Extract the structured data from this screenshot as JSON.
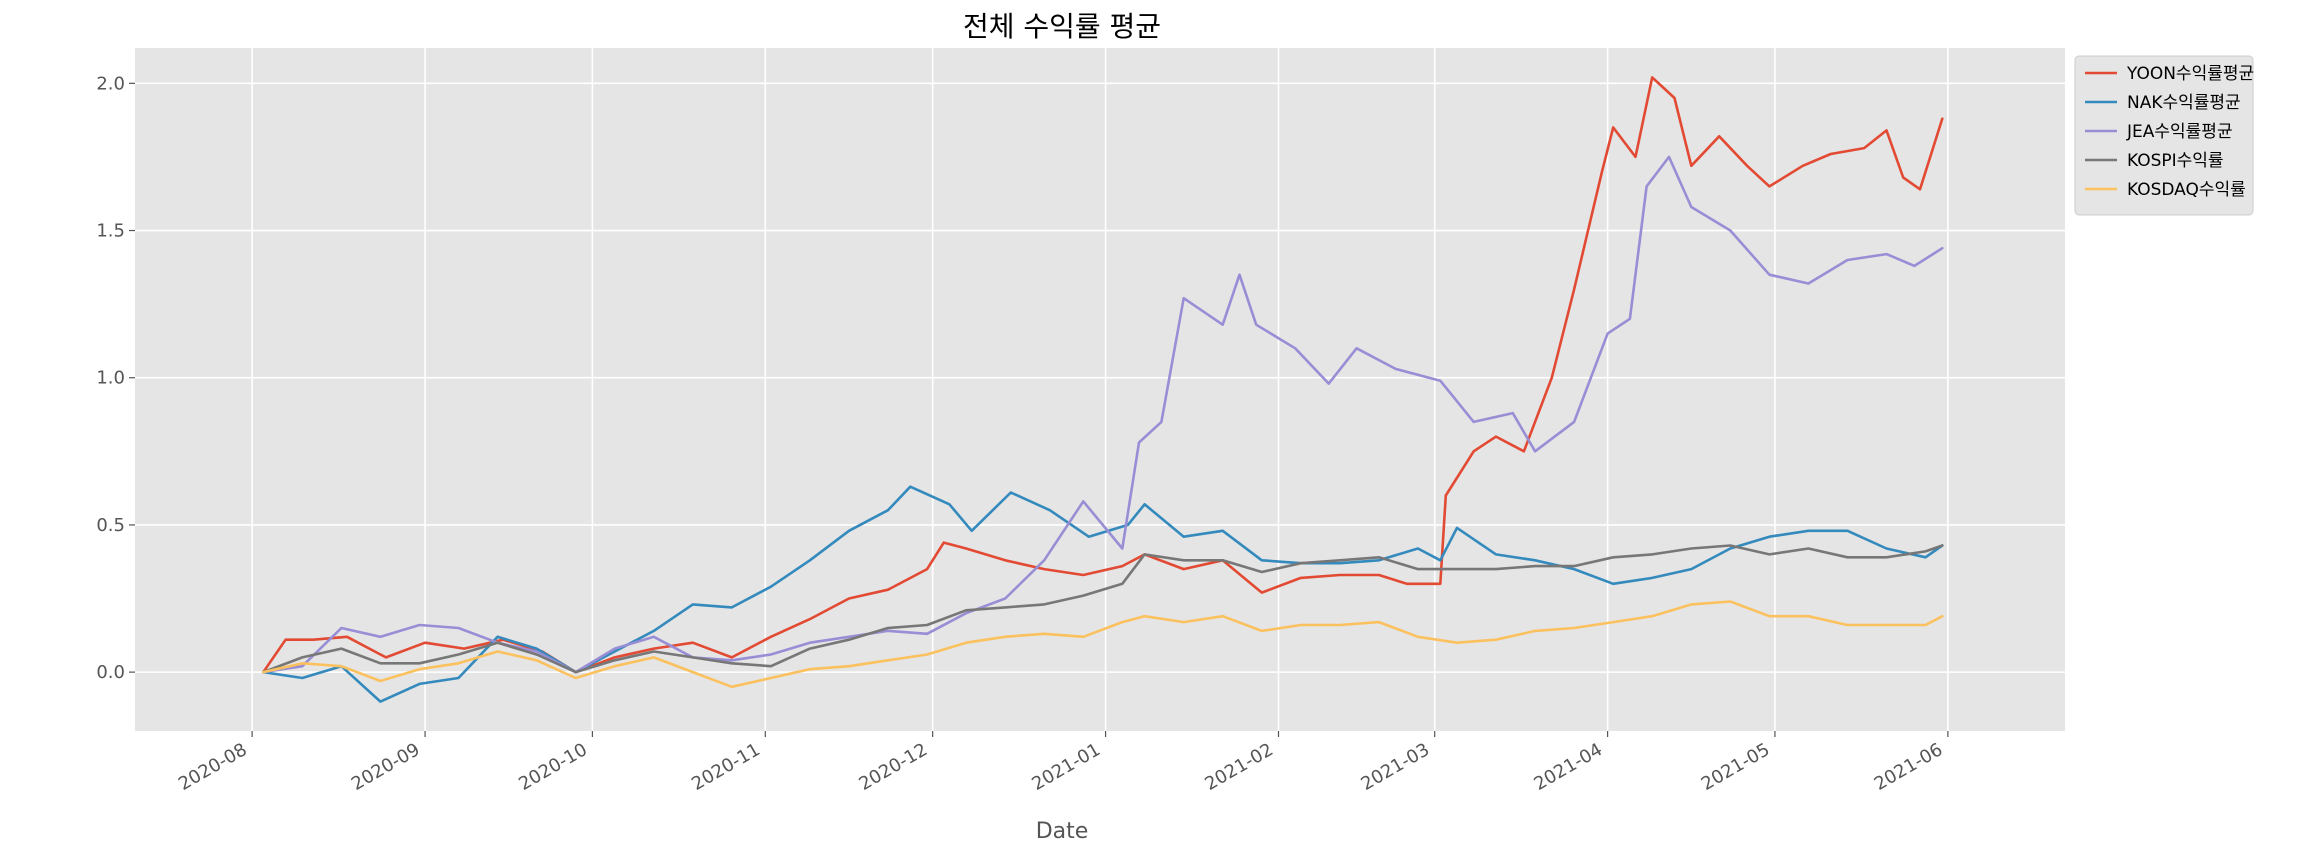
{
  "chart_data": {
    "type": "line",
    "title": "전체 수익률 평균",
    "xlabel": "Date",
    "ylabel": "",
    "xlim": [
      "2020-07-11",
      "2021-06-22"
    ],
    "ylim": [
      -0.2,
      2.12
    ],
    "x_ticks": [
      "2020-08",
      "2020-09",
      "2020-10",
      "2020-11",
      "2020-12",
      "2021-01",
      "2021-02",
      "2021-03",
      "2021-04",
      "2021-05",
      "2021-06"
    ],
    "y_ticks": [
      "0.0",
      "0.5",
      "1.0",
      "1.5",
      "2.0"
    ],
    "grid": true,
    "legend_position": "top-right",
    "colors": {
      "background": "#e5e5e5",
      "grid": "#ffffff",
      "yoon": "#e24a33",
      "nak": "#348abd",
      "jea": "#988ed5",
      "kospi": "#777777",
      "kosdaq": "#fbc15e"
    },
    "series": [
      {
        "name": "YOON수익률평균",
        "color": "#e24a33",
        "points": [
          [
            "2020-08-03",
            0.0
          ],
          [
            "2020-08-07",
            0.11
          ],
          [
            "2020-08-12",
            0.11
          ],
          [
            "2020-08-18",
            0.12
          ],
          [
            "2020-08-25",
            0.05
          ],
          [
            "2020-09-01",
            0.1
          ],
          [
            "2020-09-08",
            0.08
          ],
          [
            "2020-09-15",
            0.11
          ],
          [
            "2020-09-22",
            0.07
          ],
          [
            "2020-09-28",
            0.0
          ],
          [
            "2020-10-05",
            0.05
          ],
          [
            "2020-10-12",
            0.08
          ],
          [
            "2020-10-19",
            0.1
          ],
          [
            "2020-10-26",
            0.05
          ],
          [
            "2020-11-02",
            0.12
          ],
          [
            "2020-11-09",
            0.18
          ],
          [
            "2020-11-16",
            0.25
          ],
          [
            "2020-11-23",
            0.28
          ],
          [
            "2020-11-30",
            0.35
          ],
          [
            "2020-12-03",
            0.44
          ],
          [
            "2020-12-07",
            0.42
          ],
          [
            "2020-12-14",
            0.38
          ],
          [
            "2020-12-21",
            0.35
          ],
          [
            "2020-12-28",
            0.33
          ],
          [
            "2021-01-04",
            0.36
          ],
          [
            "2021-01-08",
            0.4
          ],
          [
            "2021-01-15",
            0.35
          ],
          [
            "2021-01-22",
            0.38
          ],
          [
            "2021-01-29",
            0.27
          ],
          [
            "2021-02-05",
            0.32
          ],
          [
            "2021-02-12",
            0.33
          ],
          [
            "2021-02-19",
            0.33
          ],
          [
            "2021-02-24",
            0.3
          ],
          [
            "2021-03-02",
            0.3
          ],
          [
            "2021-03-03",
            0.6
          ],
          [
            "2021-03-08",
            0.75
          ],
          [
            "2021-03-12",
            0.8
          ],
          [
            "2021-03-17",
            0.75
          ],
          [
            "2021-03-22",
            1.0
          ],
          [
            "2021-03-26",
            1.3
          ],
          [
            "2021-03-31",
            1.7
          ],
          [
            "2021-04-02",
            1.85
          ],
          [
            "2021-04-06",
            1.75
          ],
          [
            "2021-04-09",
            2.02
          ],
          [
            "2021-04-13",
            1.95
          ],
          [
            "2021-04-16",
            1.72
          ],
          [
            "2021-04-21",
            1.82
          ],
          [
            "2021-04-26",
            1.72
          ],
          [
            "2021-04-30",
            1.65
          ],
          [
            "2021-05-06",
            1.72
          ],
          [
            "2021-05-11",
            1.76
          ],
          [
            "2021-05-17",
            1.78
          ],
          [
            "2021-05-21",
            1.84
          ],
          [
            "2021-05-24",
            1.68
          ],
          [
            "2021-05-27",
            1.64
          ],
          [
            "2021-05-31",
            1.88
          ]
        ]
      },
      {
        "name": "NAK수익률평균",
        "color": "#348abd",
        "points": [
          [
            "2020-08-03",
            0.0
          ],
          [
            "2020-08-10",
            -0.02
          ],
          [
            "2020-08-17",
            0.02
          ],
          [
            "2020-08-24",
            -0.1
          ],
          [
            "2020-08-31",
            -0.04
          ],
          [
            "2020-09-07",
            -0.02
          ],
          [
            "2020-09-14",
            0.12
          ],
          [
            "2020-09-21",
            0.08
          ],
          [
            "2020-09-28",
            0.0
          ],
          [
            "2020-10-05",
            0.07
          ],
          [
            "2020-10-12",
            0.14
          ],
          [
            "2020-10-19",
            0.23
          ],
          [
            "2020-10-26",
            0.22
          ],
          [
            "2020-11-02",
            0.29
          ],
          [
            "2020-11-09",
            0.38
          ],
          [
            "2020-11-16",
            0.48
          ],
          [
            "2020-11-23",
            0.55
          ],
          [
            "2020-11-27",
            0.63
          ],
          [
            "2020-12-04",
            0.57
          ],
          [
            "2020-12-08",
            0.48
          ],
          [
            "2020-12-15",
            0.61
          ],
          [
            "2020-12-22",
            0.55
          ],
          [
            "2020-12-29",
            0.46
          ],
          [
            "2021-01-05",
            0.5
          ],
          [
            "2021-01-08",
            0.57
          ],
          [
            "2021-01-15",
            0.46
          ],
          [
            "2021-01-22",
            0.48
          ],
          [
            "2021-01-29",
            0.38
          ],
          [
            "2021-02-05",
            0.37
          ],
          [
            "2021-02-12",
            0.37
          ],
          [
            "2021-02-19",
            0.38
          ],
          [
            "2021-02-26",
            0.42
          ],
          [
            "2021-03-02",
            0.38
          ],
          [
            "2021-03-05",
            0.49
          ],
          [
            "2021-03-12",
            0.4
          ],
          [
            "2021-03-19",
            0.38
          ],
          [
            "2021-03-26",
            0.35
          ],
          [
            "2021-04-02",
            0.3
          ],
          [
            "2021-04-09",
            0.32
          ],
          [
            "2021-04-16",
            0.35
          ],
          [
            "2021-04-23",
            0.42
          ],
          [
            "2021-04-30",
            0.46
          ],
          [
            "2021-05-07",
            0.48
          ],
          [
            "2021-05-14",
            0.48
          ],
          [
            "2021-05-21",
            0.42
          ],
          [
            "2021-05-28",
            0.39
          ],
          [
            "2021-05-31",
            0.43
          ]
        ]
      },
      {
        "name": "JEA수익률평균",
        "color": "#988ed5",
        "points": [
          [
            "2020-08-03",
            0.0
          ],
          [
            "2020-08-10",
            0.02
          ],
          [
            "2020-08-17",
            0.15
          ],
          [
            "2020-08-24",
            0.12
          ],
          [
            "2020-08-31",
            0.16
          ],
          [
            "2020-09-07",
            0.15
          ],
          [
            "2020-09-14",
            0.1
          ],
          [
            "2020-09-21",
            0.07
          ],
          [
            "2020-09-28",
            0.0
          ],
          [
            "2020-10-05",
            0.08
          ],
          [
            "2020-10-12",
            0.12
          ],
          [
            "2020-10-19",
            0.05
          ],
          [
            "2020-10-26",
            0.04
          ],
          [
            "2020-11-02",
            0.06
          ],
          [
            "2020-11-09",
            0.1
          ],
          [
            "2020-11-16",
            0.12
          ],
          [
            "2020-11-23",
            0.14
          ],
          [
            "2020-11-30",
            0.13
          ],
          [
            "2020-12-07",
            0.2
          ],
          [
            "2020-12-14",
            0.25
          ],
          [
            "2020-12-21",
            0.38
          ],
          [
            "2020-12-28",
            0.58
          ],
          [
            "2021-01-04",
            0.42
          ],
          [
            "2021-01-07",
            0.78
          ],
          [
            "2021-01-11",
            0.85
          ],
          [
            "2021-01-15",
            1.27
          ],
          [
            "2021-01-22",
            1.18
          ],
          [
            "2021-01-25",
            1.35
          ],
          [
            "2021-01-28",
            1.18
          ],
          [
            "2021-02-04",
            1.1
          ],
          [
            "2021-02-10",
            0.98
          ],
          [
            "2021-02-15",
            1.1
          ],
          [
            "2021-02-22",
            1.03
          ],
          [
            "2021-03-02",
            0.99
          ],
          [
            "2021-03-08",
            0.85
          ],
          [
            "2021-03-15",
            0.88
          ],
          [
            "2021-03-19",
            0.75
          ],
          [
            "2021-03-26",
            0.85
          ],
          [
            "2021-04-01",
            1.15
          ],
          [
            "2021-04-05",
            1.2
          ],
          [
            "2021-04-08",
            1.65
          ],
          [
            "2021-04-12",
            1.75
          ],
          [
            "2021-04-16",
            1.58
          ],
          [
            "2021-04-23",
            1.5
          ],
          [
            "2021-04-30",
            1.35
          ],
          [
            "2021-05-07",
            1.32
          ],
          [
            "2021-05-14",
            1.4
          ],
          [
            "2021-05-21",
            1.42
          ],
          [
            "2021-05-26",
            1.38
          ],
          [
            "2021-05-31",
            1.44
          ]
        ]
      },
      {
        "name": "KOSPI수익률",
        "color": "#777777",
        "points": [
          [
            "2020-08-03",
            0.0
          ],
          [
            "2020-08-10",
            0.05
          ],
          [
            "2020-08-17",
            0.08
          ],
          [
            "2020-08-24",
            0.03
          ],
          [
            "2020-08-31",
            0.03
          ],
          [
            "2020-09-07",
            0.06
          ],
          [
            "2020-09-14",
            0.1
          ],
          [
            "2020-09-21",
            0.06
          ],
          [
            "2020-09-28",
            0.0
          ],
          [
            "2020-10-05",
            0.04
          ],
          [
            "2020-10-12",
            0.07
          ],
          [
            "2020-10-19",
            0.05
          ],
          [
            "2020-10-26",
            0.03
          ],
          [
            "2020-11-02",
            0.02
          ],
          [
            "2020-11-09",
            0.08
          ],
          [
            "2020-11-16",
            0.11
          ],
          [
            "2020-11-23",
            0.15
          ],
          [
            "2020-11-30",
            0.16
          ],
          [
            "2020-12-07",
            0.21
          ],
          [
            "2020-12-14",
            0.22
          ],
          [
            "2020-12-21",
            0.23
          ],
          [
            "2020-12-28",
            0.26
          ],
          [
            "2021-01-04",
            0.3
          ],
          [
            "2021-01-08",
            0.4
          ],
          [
            "2021-01-15",
            0.38
          ],
          [
            "2021-01-22",
            0.38
          ],
          [
            "2021-01-29",
            0.34
          ],
          [
            "2021-02-05",
            0.37
          ],
          [
            "2021-02-12",
            0.38
          ],
          [
            "2021-02-19",
            0.39
          ],
          [
            "2021-02-26",
            0.35
          ],
          [
            "2021-03-05",
            0.35
          ],
          [
            "2021-03-12",
            0.35
          ],
          [
            "2021-03-19",
            0.36
          ],
          [
            "2021-03-26",
            0.36
          ],
          [
            "2021-04-02",
            0.39
          ],
          [
            "2021-04-09",
            0.4
          ],
          [
            "2021-04-16",
            0.42
          ],
          [
            "2021-04-23",
            0.43
          ],
          [
            "2021-04-30",
            0.4
          ],
          [
            "2021-05-07",
            0.42
          ],
          [
            "2021-05-14",
            0.39
          ],
          [
            "2021-05-21",
            0.39
          ],
          [
            "2021-05-28",
            0.41
          ],
          [
            "2021-05-31",
            0.43
          ]
        ]
      },
      {
        "name": "KOSDAQ수익률",
        "color": "#fbc15e",
        "points": [
          [
            "2020-08-03",
            0.0
          ],
          [
            "2020-08-10",
            0.03
          ],
          [
            "2020-08-17",
            0.02
          ],
          [
            "2020-08-24",
            -0.03
          ],
          [
            "2020-08-31",
            0.01
          ],
          [
            "2020-09-07",
            0.03
          ],
          [
            "2020-09-14",
            0.07
          ],
          [
            "2020-09-21",
            0.04
          ],
          [
            "2020-09-28",
            -0.02
          ],
          [
            "2020-10-05",
            0.02
          ],
          [
            "2020-10-12",
            0.05
          ],
          [
            "2020-10-19",
            0.0
          ],
          [
            "2020-10-26",
            -0.05
          ],
          [
            "2020-11-02",
            -0.02
          ],
          [
            "2020-11-09",
            0.01
          ],
          [
            "2020-11-16",
            0.02
          ],
          [
            "2020-11-23",
            0.04
          ],
          [
            "2020-11-30",
            0.06
          ],
          [
            "2020-12-07",
            0.1
          ],
          [
            "2020-12-14",
            0.12
          ],
          [
            "2020-12-21",
            0.13
          ],
          [
            "2020-12-28",
            0.12
          ],
          [
            "2021-01-04",
            0.17
          ],
          [
            "2021-01-08",
            0.19
          ],
          [
            "2021-01-15",
            0.17
          ],
          [
            "2021-01-22",
            0.19
          ],
          [
            "2021-01-29",
            0.14
          ],
          [
            "2021-02-05",
            0.16
          ],
          [
            "2021-02-12",
            0.16
          ],
          [
            "2021-02-19",
            0.17
          ],
          [
            "2021-02-26",
            0.12
          ],
          [
            "2021-03-05",
            0.1
          ],
          [
            "2021-03-12",
            0.11
          ],
          [
            "2021-03-19",
            0.14
          ],
          [
            "2021-03-26",
            0.15
          ],
          [
            "2021-04-02",
            0.17
          ],
          [
            "2021-04-09",
            0.19
          ],
          [
            "2021-04-16",
            0.23
          ],
          [
            "2021-04-23",
            0.24
          ],
          [
            "2021-04-30",
            0.19
          ],
          [
            "2021-05-07",
            0.19
          ],
          [
            "2021-05-14",
            0.16
          ],
          [
            "2021-05-21",
            0.16
          ],
          [
            "2021-05-28",
            0.16
          ],
          [
            "2021-05-31",
            0.19
          ]
        ]
      }
    ]
  }
}
